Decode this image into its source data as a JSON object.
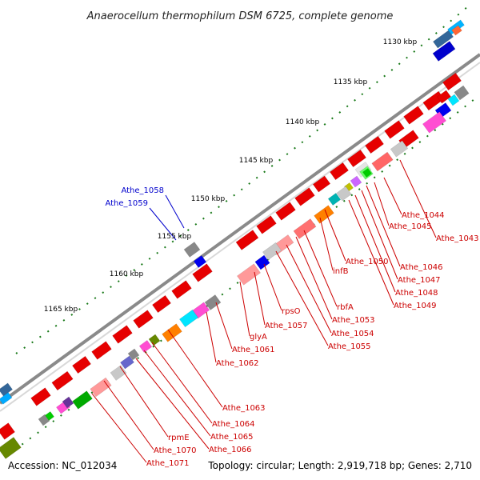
{
  "title": "Anaerocellum thermophilum DSM 6725, complete genome",
  "footer": {
    "accession": "Accession: NC_012034",
    "stats": "Topology: circular; Length: 2,919,718 bp; Genes: 2,710"
  },
  "colors": {
    "forward_gene": "#e60000",
    "reverse_gene": "#0000ee",
    "label_forward": "#cc0000",
    "label_reverse": "#0000cc",
    "tick": "#1a7a1a",
    "backbone": "#8a8a8a"
  },
  "scale_ticks": [
    "1130 kbp",
    "1135 kbp",
    "1140 kbp",
    "1145 kbp",
    "1150 kbp",
    "1155 kbp",
    "1160 kbp",
    "1165 kbp"
  ],
  "reverse_labels": [
    "Athe_1058",
    "Athe_1059"
  ],
  "forward_labels": [
    "Athe_1044",
    "Athe_1045",
    "Athe_1043",
    "Athe_1046",
    "Athe_1047",
    "Athe_1048",
    "Athe_1049",
    "Athe_1050",
    "infB",
    "rbfA",
    "Athe_1053",
    "Athe_1054",
    "Athe_1055",
    "rpsO",
    "Athe_1057",
    "glyA",
    "Athe_1061",
    "Athe_1062",
    "Athe_1063",
    "Athe_1064",
    "Athe_1065",
    "Athe_1066",
    "rpmE",
    "Athe_1070",
    "Athe_1071"
  ]
}
